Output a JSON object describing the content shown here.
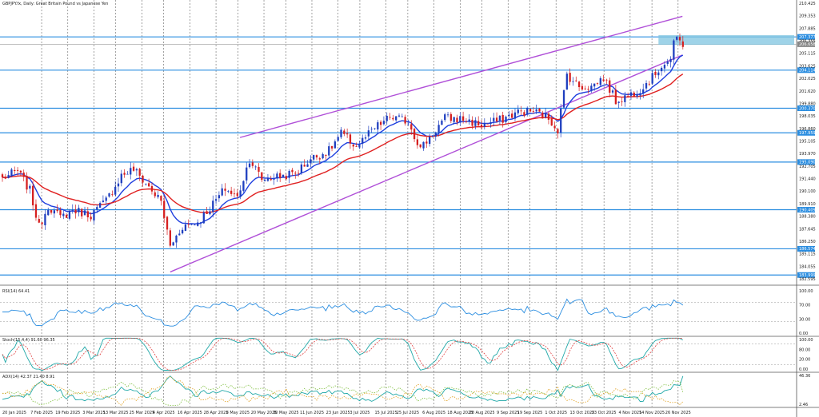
{
  "header": {
    "title": "GBPJPY.fx, Daily:  Great Britain Pound vs Japanese Yen",
    "rsi_label": "RSI(14) 64.41",
    "stoch_label": "Stoch(15,4,4) 91.60 96.35",
    "adx_label": "ADX(14) 42.37 21.40 8.91"
  },
  "colors": {
    "up": "#1f3fbf",
    "down": "#d62020",
    "ema_fast": "#1f3fdf",
    "ema_slow": "#e02020",
    "channel": "#b050d8",
    "hline": "#2a8de0",
    "zone": "#7fc4e0",
    "rsi": "#2a8de0",
    "stoch_main": "#20a8a8",
    "stoch_signal": "#e04040",
    "adx": "#20a8a8",
    "di_plus": "#80c040",
    "di_minus": "#e0a020"
  },
  "chart_data": {
    "type": "candlestick",
    "symbol": "GBPJPY.fx",
    "timeframe": "Daily",
    "price_ylim": [
      183.0,
      211.0
    ],
    "price_ticks": [
      "210.425",
      "209.353",
      "207.885",
      "206.355",
      "205.115",
      "203.625",
      "202.025",
      "201.620",
      "199.880",
      "198.035",
      "196.860",
      "195.105",
      "193.970",
      "192.705",
      "191.440",
      "190.100",
      "189.910",
      "188.380",
      "187.645",
      "186.250",
      "185.115",
      "184.055",
      "182.595"
    ],
    "levels": [
      {
        "price": 207.377,
        "label": "207.377"
      },
      {
        "price": 204.114,
        "label": "204.114"
      },
      {
        "price": 200.37,
        "label": "200.370"
      },
      {
        "price": 197.959,
        "label": "197.959"
      },
      {
        "price": 195.09,
        "label": "195.090"
      },
      {
        "price": 190.409,
        "label": "190.409"
      },
      {
        "price": 186.574,
        "label": "186.574"
      },
      {
        "price": 183.999,
        "label": "183.999"
      }
    ],
    "last_price_label": "206.658",
    "last_price": 206.658,
    "zone": {
      "from_date": "17 Nov 2025",
      "low": 206.6,
      "high": 207.55
    },
    "channel": {
      "upper": [
        [
          "9 May 2025",
          197.5
        ],
        [
          "28 Nov 2025",
          209.4
        ]
      ],
      "lower": [
        [
          "7 Apr 2025",
          184.3
        ],
        [
          "28 Nov 2025",
          205.6
        ]
      ]
    },
    "x_labels": [
      "20 Jan 2025",
      "7 Feb 2025",
      "19 Feb 2025",
      "3 Mar 2025",
      "13 Mar 2025",
      "25 Mar 2025",
      "4 Apr 2025",
      "16 Apr 2025",
      "28 Apr 2025",
      "8 May 2025",
      "20 May 2025",
      "30 May 2025",
      "11 Jun 2025",
      "23 Jun 2025",
      "3 Jul 2025",
      "15 Jul 2025",
      "25 Jul 2025",
      "6 Aug 2025",
      "18 Aug 2025",
      "28 Aug 2025",
      "9 Sep 2025",
      "19 Sep 2025",
      "1 Oct 2025",
      "13 Oct 2025",
      "23 Oct 2025",
      "4 Nov 2025",
      "14 Nov 2025",
      "26 Nov 2025"
    ],
    "close_anchors": [
      [
        "27 Jan 2025",
        194.2
      ],
      [
        "31 Jan 2025",
        192.3
      ],
      [
        "5 Feb 2025",
        188.7
      ],
      [
        "10 Feb 2025",
        190.8
      ],
      [
        "14 Feb 2025",
        189.6
      ],
      [
        "20 Feb 2025",
        190.4
      ],
      [
        "28 Feb 2025",
        189.9
      ],
      [
        "7 Mar 2025",
        191.3
      ],
      [
        "14 Mar 2025",
        193.8
      ],
      [
        "20 Mar 2025",
        194.4
      ],
      [
        "26 Mar 2025",
        193.0
      ],
      [
        "2 Apr 2025",
        191.2
      ],
      [
        "7 Apr 2025",
        186.8
      ],
      [
        "11 Apr 2025",
        188.8
      ],
      [
        "18 Apr 2025",
        189.2
      ],
      [
        "24 Apr 2025",
        190.6
      ],
      [
        "1 May 2025",
        192.5
      ],
      [
        "7 May 2025",
        191.6
      ],
      [
        "13 May 2025",
        195.4
      ],
      [
        "19 May 2025",
        193.4
      ],
      [
        "27 May 2025",
        193.7
      ],
      [
        "3 Jun 2025",
        194.0
      ],
      [
        "10 Jun 2025",
        195.4
      ],
      [
        "18 Jun 2025",
        196.2
      ],
      [
        "24 Jun 2025",
        197.9
      ],
      [
        "1 Jul 2025",
        196.6
      ],
      [
        "9 Jul 2025",
        198.4
      ],
      [
        "16 Jul 2025",
        199.5
      ],
      [
        "24 Jul 2025",
        199.1
      ],
      [
        "30 Jul 2025",
        196.4
      ],
      [
        "5 Aug 2025",
        197.9
      ],
      [
        "11 Aug 2025",
        199.4
      ],
      [
        "19 Aug 2025",
        199.3
      ],
      [
        "27 Aug 2025",
        198.7
      ],
      [
        "4 Sep 2025",
        199.2
      ],
      [
        "12 Sep 2025",
        200.0
      ],
      [
        "19 Sep 2025",
        200.1
      ],
      [
        "26 Sep 2025",
        199.4
      ],
      [
        "1 Oct 2025",
        198.3
      ],
      [
        "6 Oct 2025",
        203.7
      ],
      [
        "10 Oct 2025",
        202.5
      ],
      [
        "16 Oct 2025",
        202.5
      ],
      [
        "22 Oct 2025",
        203.4
      ],
      [
        "28 Oct 2025",
        201.1
      ],
      [
        "3 Nov 2025",
        201.6
      ],
      [
        "7 Nov 2025",
        202.3
      ],
      [
        "13 Nov 2025",
        203.4
      ],
      [
        "18 Nov 2025",
        204.6
      ],
      [
        "21 Nov 2025",
        205.2
      ],
      [
        "24 Nov 2025",
        206.6
      ],
      [
        "25 Nov 2025",
        207.2
      ],
      [
        "27 Nov 2025",
        206.7
      ]
    ],
    "rsi": {
      "value": 64.41,
      "levels": [
        70,
        30
      ],
      "tick_labels": [
        "100.00",
        "70.00",
        "30.00",
        "0.00"
      ],
      "ylim": [
        0,
        100
      ]
    },
    "stoch": {
      "main": 91.6,
      "signal": 96.35,
      "levels": [
        80,
        20
      ],
      "tick_labels": [
        "100.00",
        "80.00",
        "20.00",
        "0.00"
      ],
      "ylim": [
        0,
        100
      ]
    },
    "adx": {
      "adx": 42.37,
      "di_plus": 21.4,
      "di_minus": 8.91,
      "tick_labels": [
        "46.36",
        "2.46"
      ],
      "ylim": [
        2.46,
        46.36
      ]
    }
  }
}
